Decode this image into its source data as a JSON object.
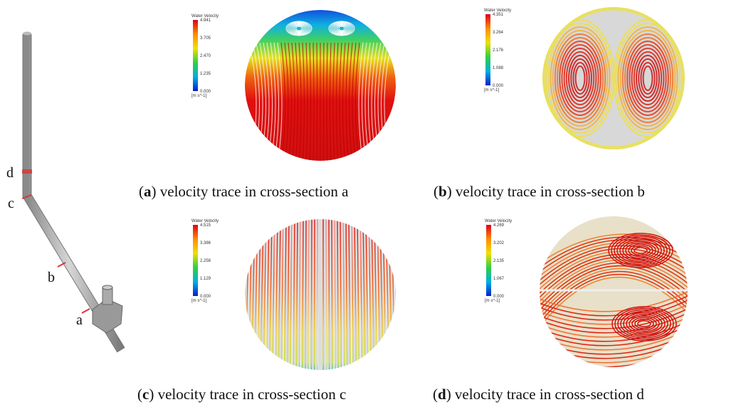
{
  "pipe": {
    "labels": [
      "d",
      "c",
      "b",
      "a"
    ]
  },
  "panels": [
    {
      "colorbar": {
        "title": "Water Velocity",
        "ticks": [
          "4.941",
          "3.705",
          "2.470",
          "1.235",
          "0.000"
        ],
        "unit": "[m s^-1]"
      },
      "caption": {
        "open": "(",
        "letter": "a",
        "text": ") velocity trace in cross-section a"
      }
    },
    {
      "colorbar": {
        "title": "Water Velocity",
        "ticks": [
          "4.351",
          "3.264",
          "2.176",
          "1.088",
          "0.000"
        ],
        "unit": "[m s^-1]"
      },
      "caption": {
        "open": "(",
        "letter": "b",
        "text": ") velocity trace in cross-section b"
      }
    },
    {
      "colorbar": {
        "title": "Water Velocity",
        "ticks": [
          "4.515",
          "3.386",
          "2.258",
          "1.129",
          "0.000"
        ],
        "unit": "[m s^-1]"
      },
      "caption": {
        "open": "(",
        "letter": "c",
        "text": ") velocity trace in cross-section c"
      }
    },
    {
      "colorbar": {
        "title": "Water Velocity",
        "ticks": [
          "4.269",
          "3.202",
          "2.135",
          "1.067",
          "0.000"
        ],
        "unit": "[m s^-1]"
      },
      "caption": {
        "open": "(",
        "letter": "d",
        "text": ") velocity trace in cross-section d"
      }
    }
  ]
}
